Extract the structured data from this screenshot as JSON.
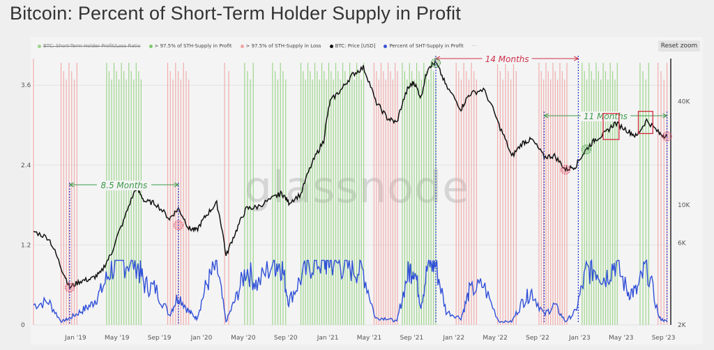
{
  "title": "Bitcoin: Percent of Short-Term Holder Supply in Profit",
  "reset_zoom": "Reset zoom",
  "watermark": "glassnode",
  "legend": [
    {
      "label": "BTC: Short-Term Holder Profit/Loss Ratio",
      "color": "#9ed38a",
      "disabled": true
    },
    {
      "label": "> 97.5% of STH-Supply in Profit",
      "color": "#7cc86a",
      "disabled": false
    },
    {
      "label": "> 97.5% of STH-Supply in Loss",
      "color": "#f2a3a3",
      "disabled": false
    },
    {
      "label": "BTC: Price [USD]",
      "color": "#111111",
      "disabled": false
    },
    {
      "label": "Percent of SHT-Supply in Profit",
      "color": "#3a55d8",
      "disabled": false
    }
  ],
  "annotations": {
    "months_85": "8.5 Months",
    "months_14": "14 Months",
    "months_11": "11 Months"
  },
  "colors": {
    "price": "#111111",
    "percent": "#2f4fd8",
    "profit": "#8fd07a",
    "loss": "#f1a0a0",
    "ann_green": "#3a9a48",
    "ann_red": "#cf2f4a",
    "ann_blue": "#2f3fd0"
  },
  "chart_data": {
    "type": "line",
    "x_ticks": [
      "Jan '19",
      "May '19",
      "Sep '19",
      "Jan '20",
      "May '20",
      "Sep '20",
      "Jan '21",
      "May '21",
      "Sep '21",
      "Jan '22",
      "May '22",
      "Sep '22",
      "Jan '23",
      "May '23",
      "Sep '23"
    ],
    "y_left_ticks": [
      "0",
      "1.2",
      "2.4",
      "3.6"
    ],
    "y_right_ticks": [
      "2K",
      "6K",
      "10K",
      "40K"
    ],
    "y_right_scale": "log",
    "series": [
      {
        "name": "BTC: Price [USD]",
        "axis": "right",
        "x": [
          "2018-09-01",
          "2018-10-15",
          "2018-11-20",
          "2018-12-15",
          "2019-01-15",
          "2019-02-15",
          "2019-03-15",
          "2019-04-15",
          "2019-05-20",
          "2019-06-26",
          "2019-07-20",
          "2019-08-20",
          "2019-09-30",
          "2019-10-26",
          "2019-11-25",
          "2019-12-18",
          "2020-01-15",
          "2020-02-14",
          "2020-03-12",
          "2020-04-10",
          "2020-05-10",
          "2020-06-10",
          "2020-07-28",
          "2020-08-20",
          "2020-09-10",
          "2020-10-15",
          "2020-11-20",
          "2020-12-20",
          "2021-01-08",
          "2021-02-10",
          "2021-03-13",
          "2021-04-14",
          "2021-05-19",
          "2021-06-22",
          "2021-07-20",
          "2021-08-20",
          "2021-09-07",
          "2021-09-28",
          "2021-10-20",
          "2021-11-10",
          "2021-12-10",
          "2022-01-22",
          "2022-02-15",
          "2022-03-28",
          "2022-05-12",
          "2022-06-18",
          "2022-07-20",
          "2022-08-15",
          "2022-09-20",
          "2022-10-20",
          "2022-11-21",
          "2022-12-20",
          "2023-01-20",
          "2023-02-15",
          "2023-03-15",
          "2023-04-14",
          "2023-05-20",
          "2023-06-15",
          "2023-07-14",
          "2023-08-20",
          "2023-09-11"
        ],
        "values": [
          7000,
          6400,
          4300,
          3300,
          3600,
          3700,
          4000,
          5200,
          8000,
          12500,
          10500,
          10200,
          8300,
          9500,
          7300,
          7100,
          8700,
          10200,
          5000,
          7000,
          9500,
          9700,
          11000,
          11700,
          10300,
          11500,
          18000,
          23500,
          40000,
          47000,
          57000,
          63000,
          40000,
          32000,
          30000,
          47000,
          52000,
          42000,
          64000,
          67000,
          49000,
          36000,
          44000,
          47000,
          29000,
          19000,
          23000,
          24000,
          19000,
          19300,
          16000,
          16800,
          21000,
          24000,
          26000,
          30000,
          27000,
          25000,
          31000,
          26000,
          25000
        ]
      },
      {
        "name": "Percent of SHT-Supply in Profit",
        "axis": "left",
        "x": [
          "2018-09-01",
          "2018-10-15",
          "2018-11-20",
          "2018-12-15",
          "2019-01-15",
          "2019-02-15",
          "2019-03-15",
          "2019-04-15",
          "2019-05-20",
          "2019-06-26",
          "2019-07-20",
          "2019-08-20",
          "2019-09-30",
          "2019-10-26",
          "2019-11-25",
          "2019-12-18",
          "2020-01-15",
          "2020-02-14",
          "2020-03-12",
          "2020-04-10",
          "2020-05-10",
          "2020-06-10",
          "2020-07-28",
          "2020-08-20",
          "2020-09-10",
          "2020-10-15",
          "2020-11-20",
          "2020-12-20",
          "2021-01-08",
          "2021-02-10",
          "2021-03-13",
          "2021-04-14",
          "2021-05-19",
          "2021-06-22",
          "2021-07-20",
          "2021-08-20",
          "2021-09-07",
          "2021-09-28",
          "2021-10-20",
          "2021-11-10",
          "2021-12-10",
          "2022-01-22",
          "2022-02-15",
          "2022-03-28",
          "2022-05-12",
          "2022-06-18",
          "2022-07-20",
          "2022-08-15",
          "2022-09-20",
          "2022-10-20",
          "2022-11-21",
          "2022-12-20",
          "2023-01-20",
          "2023-02-15",
          "2023-03-15",
          "2023-04-14",
          "2023-05-20",
          "2023-06-15",
          "2023-07-14",
          "2023-08-20",
          "2023-09-11"
        ],
        "values": [
          0.3,
          0.35,
          0.05,
          0.1,
          0.2,
          0.3,
          0.5,
          0.85,
          0.95,
          0.95,
          0.6,
          0.55,
          0.15,
          0.45,
          0.2,
          0.1,
          0.6,
          0.9,
          0.05,
          0.4,
          0.85,
          0.6,
          0.95,
          0.9,
          0.35,
          0.7,
          0.95,
          0.95,
          0.95,
          0.9,
          0.85,
          0.8,
          0.1,
          0.1,
          0.05,
          0.75,
          0.9,
          0.3,
          0.95,
          0.9,
          0.2,
          0.1,
          0.5,
          0.6,
          0.05,
          0.05,
          0.35,
          0.5,
          0.15,
          0.3,
          0.05,
          0.2,
          0.8,
          0.85,
          0.7,
          0.95,
          0.5,
          0.5,
          0.9,
          0.1,
          0.05
        ]
      }
    ],
    "profit_periods": [
      [
        "2019-04-01",
        "2019-07-10"
      ],
      [
        "2020-05-05",
        "2020-05-30"
      ],
      [
        "2020-07-25",
        "2020-09-01"
      ],
      [
        "2020-10-15",
        "2021-04-15"
      ],
      [
        "2021-08-05",
        "2021-11-10"
      ],
      [
        "2023-01-08",
        "2023-04-20"
      ],
      [
        "2023-06-25",
        "2023-07-20"
      ]
    ],
    "loss_periods": [
      [
        "2018-11-20",
        "2019-01-05"
      ],
      [
        "2019-09-25",
        "2019-11-25"
      ],
      [
        "2020-03-08",
        "2020-03-20"
      ],
      [
        "2021-05-15",
        "2021-07-22"
      ],
      [
        "2022-01-08",
        "2022-03-08"
      ],
      [
        "2022-05-08",
        "2022-07-01"
      ],
      [
        "2022-09-05",
        "2022-11-25"
      ],
      [
        "2023-08-16",
        "2023-09-11"
      ]
    ],
    "ylim_left": [
      0,
      4.0
    ],
    "grid": true,
    "legend_position": "top-left"
  }
}
